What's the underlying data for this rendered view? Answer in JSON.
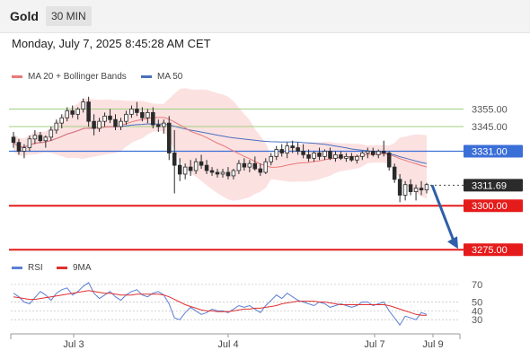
{
  "header": {
    "symbol": "Gold",
    "interval": "30 MIN",
    "datetime": "Monday, July 7, 2025 8:45:28 AM CET"
  },
  "colors": {
    "candle": "#2a2a2a",
    "ma20": "#e87878",
    "bollinger_fill": "#fbdcdc",
    "ma50": "#4a6fbf",
    "resistance": "#9fd07f",
    "support": "#e51b1b",
    "pivot": "#3b6fd8",
    "arrow": "#2f5fa8",
    "rsi": "#5b7fd4",
    "rsi_ma": "#e03030"
  },
  "chart_data": [
    {
      "type": "candlestick",
      "title": "",
      "legend": [
        {
          "name": "MA 20 + Bollinger Bands",
          "color": "#e87878"
        },
        {
          "name": "MA 50",
          "color": "#4a6fbf"
        }
      ],
      "x_ticks": [
        "Jul 3",
        "Jul 4",
        "Jul 7",
        "Jul 9"
      ],
      "ylim": [
        3270,
        3368
      ],
      "levels": [
        {
          "value": 3355.0,
          "label": "3355.00",
          "kind": "resistance"
        },
        {
          "value": 3345.0,
          "label": "3345.00",
          "kind": "resistance"
        },
        {
          "value": 3331.0,
          "label": "3331.00",
          "kind": "pivot"
        },
        {
          "value": 3311.69,
          "label": "3311.69",
          "kind": "current"
        },
        {
          "value": 3300.0,
          "label": "3300.00",
          "kind": "support"
        },
        {
          "value": 3275.0,
          "label": "3275.00",
          "kind": "support"
        }
      ],
      "candles": [
        [
          3339,
          3342,
          3333,
          3336
        ],
        [
          3336,
          3338,
          3329,
          3331
        ],
        [
          3331,
          3335,
          3327,
          3333
        ],
        [
          3333,
          3340,
          3331,
          3338
        ],
        [
          3338,
          3343,
          3335,
          3340
        ],
        [
          3340,
          3342,
          3336,
          3337
        ],
        [
          3337,
          3340,
          3333,
          3339
        ],
        [
          3339,
          3345,
          3337,
          3343
        ],
        [
          3343,
          3349,
          3341,
          3347
        ],
        [
          3347,
          3352,
          3344,
          3350
        ],
        [
          3350,
          3356,
          3348,
          3354
        ],
        [
          3354,
          3357,
          3350,
          3352
        ],
        [
          3352,
          3356,
          3349,
          3355
        ],
        [
          3355,
          3361,
          3353,
          3359
        ],
        [
          3359,
          3362,
          3345,
          3348
        ],
        [
          3348,
          3352,
          3340,
          3344
        ],
        [
          3344,
          3350,
          3342,
          3348
        ],
        [
          3348,
          3353,
          3345,
          3351
        ],
        [
          3351,
          3355,
          3347,
          3349
        ],
        [
          3349,
          3352,
          3343,
          3345
        ],
        [
          3345,
          3350,
          3343,
          3348
        ],
        [
          3348,
          3354,
          3346,
          3352
        ],
        [
          3352,
          3357,
          3350,
          3355
        ],
        [
          3355,
          3359,
          3351,
          3353
        ],
        [
          3353,
          3356,
          3348,
          3350
        ],
        [
          3350,
          3355,
          3347,
          3353
        ],
        [
          3353,
          3356,
          3344,
          3346
        ],
        [
          3346,
          3349,
          3342,
          3345
        ],
        [
          3345,
          3349,
          3341,
          3347
        ],
        [
          3347,
          3351,
          3326,
          3330
        ],
        [
          3330,
          3343,
          3307,
          3323
        ],
        [
          3323,
          3327,
          3314,
          3318
        ],
        [
          3318,
          3324,
          3315,
          3322
        ],
        [
          3322,
          3326,
          3317,
          3320
        ],
        [
          3320,
          3327,
          3318,
          3325
        ],
        [
          3325,
          3329,
          3321,
          3323
        ],
        [
          3323,
          3326,
          3318,
          3320
        ],
        [
          3320,
          3322,
          3317,
          3319
        ],
        [
          3319,
          3321,
          3316,
          3318
        ],
        [
          3318,
          3321,
          3316,
          3319
        ],
        [
          3319,
          3322,
          3315,
          3317
        ],
        [
          3317,
          3321,
          3315,
          3320
        ],
        [
          3320,
          3326,
          3318,
          3324
        ],
        [
          3324,
          3327,
          3320,
          3322
        ],
        [
          3322,
          3326,
          3319,
          3324
        ],
        [
          3324,
          3328,
          3320,
          3321
        ],
        [
          3321,
          3324,
          3317,
          3319
        ],
        [
          3319,
          3327,
          3318,
          3325
        ],
        [
          3325,
          3330,
          3323,
          3328
        ],
        [
          3328,
          3334,
          3326,
          3332
        ],
        [
          3332,
          3335,
          3328,
          3330
        ],
        [
          3330,
          3336,
          3327,
          3334
        ],
        [
          3334,
          3337,
          3330,
          3333
        ],
        [
          3333,
          3336,
          3329,
          3331
        ],
        [
          3331,
          3335,
          3327,
          3329
        ],
        [
          3329,
          3332,
          3325,
          3327
        ],
        [
          3327,
          3331,
          3325,
          3330
        ],
        [
          3330,
          3333,
          3326,
          3328
        ],
        [
          3328,
          3332,
          3326,
          3331
        ],
        [
          3331,
          3333,
          3326,
          3327
        ],
        [
          3327,
          3331,
          3325,
          3329
        ],
        [
          3329,
          3331,
          3326,
          3327
        ],
        [
          3327,
          3330,
          3325,
          3328
        ],
        [
          3328,
          3330,
          3325,
          3326
        ],
        [
          3326,
          3329,
          3324,
          3328
        ],
        [
          3328,
          3331,
          3326,
          3330
        ],
        [
          3330,
          3333,
          3327,
          3331
        ],
        [
          3331,
          3333,
          3328,
          3329
        ],
        [
          3329,
          3332,
          3327,
          3331
        ],
        [
          3331,
          3337,
          3328,
          3330
        ],
        [
          3330,
          3331,
          3320,
          3322
        ],
        [
          3322,
          3324,
          3313,
          3315
        ],
        [
          3315,
          3318,
          3302,
          3306
        ],
        [
          3306,
          3314,
          3303,
          3312
        ],
        [
          3312,
          3315,
          3306,
          3308
        ],
        [
          3308,
          3312,
          3303,
          3310
        ],
        [
          3310,
          3314,
          3306,
          3309
        ],
        [
          3309,
          3313,
          3307,
          3312
        ]
      ]
    },
    {
      "type": "line",
      "title": "",
      "legend": [
        {
          "name": "RSI",
          "color": "#5b7fd4"
        },
        {
          "name": "9MA",
          "color": "#e03030"
        }
      ],
      "y_ticks": [
        70,
        50,
        40,
        30
      ],
      "ylim": [
        20,
        75
      ],
      "series": [
        {
          "name": "RSI",
          "values": [
            60,
            56,
            50,
            48,
            55,
            62,
            58,
            52,
            60,
            64,
            66,
            58,
            62,
            68,
            72,
            60,
            54,
            58,
            62,
            56,
            52,
            58,
            62,
            64,
            58,
            56,
            60,
            62,
            58,
            48,
            32,
            30,
            38,
            44,
            40,
            36,
            38,
            42,
            40,
            40,
            38,
            42,
            46,
            44,
            46,
            42,
            38,
            46,
            52,
            58,
            54,
            60,
            56,
            52,
            50,
            48,
            46,
            50,
            48,
            44,
            46,
            48,
            46,
            44,
            46,
            50,
            50,
            46,
            48,
            50,
            40,
            32,
            24,
            34,
            32,
            30,
            38,
            36
          ]
        },
        {
          "name": "9MA",
          "values": [
            56,
            55,
            54,
            53,
            53,
            54,
            55,
            56,
            57,
            58,
            59,
            60,
            61,
            62,
            63,
            62,
            61,
            60,
            60,
            59,
            58,
            58,
            58,
            59,
            59,
            59,
            59,
            59,
            58,
            56,
            53,
            50,
            47,
            45,
            43,
            41,
            40,
            40,
            39,
            39,
            39,
            40,
            41,
            42,
            42,
            43,
            43,
            44,
            45,
            46,
            48,
            49,
            50,
            51,
            51,
            51,
            51,
            50,
            50,
            49,
            48,
            47,
            47,
            47,
            47,
            47,
            47,
            47,
            47,
            47,
            46,
            44,
            42,
            40,
            38,
            36,
            35,
            35
          ]
        }
      ]
    }
  ]
}
